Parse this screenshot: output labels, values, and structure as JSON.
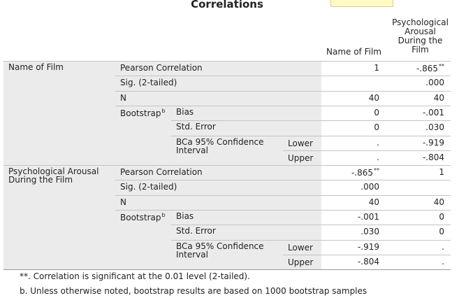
{
  "title": "Correlations",
  "columns": [
    "Name of Film",
    "Psychological Arousal During the Film"
  ],
  "blocks": [
    {
      "label": "Name of Film",
      "rows": [
        {
          "stat": "Pearson Correlation",
          "values": [
            {
              "text": "1"
            },
            {
              "text": "-.865",
              "sup": "**"
            }
          ]
        },
        {
          "stat": "Sig. (2-tailed)",
          "values": [
            null,
            {
              "text": ".000"
            }
          ]
        },
        {
          "stat": "N",
          "values": [
            {
              "text": "40"
            },
            {
              "text": "40"
            }
          ]
        },
        {
          "stat": "Bootstrap",
          "stat_sup": "b",
          "sub": "Bias",
          "values": [
            {
              "text": "0"
            },
            {
              "text": "-.001"
            }
          ]
        },
        {
          "sub": "Std. Error",
          "values": [
            {
              "text": "0"
            },
            {
              "text": ".030"
            }
          ]
        },
        {
          "sub": "BCa 95% Confidence Interval",
          "bound": "Lower",
          "values": [
            {
              "text": "."
            },
            {
              "text": "-.919"
            }
          ]
        },
        {
          "bound": "Upper",
          "values": [
            {
              "text": "."
            },
            {
              "text": "-.804"
            }
          ]
        }
      ]
    },
    {
      "label": "Psychological Arousal During the Film",
      "rows": [
        {
          "stat": "Pearson Correlation",
          "values": [
            {
              "text": "-.865",
              "sup": "**"
            },
            {
              "text": "1"
            }
          ]
        },
        {
          "stat": "Sig. (2-tailed)",
          "values": [
            {
              "text": ".000"
            },
            null
          ]
        },
        {
          "stat": "N",
          "values": [
            {
              "text": "40"
            },
            {
              "text": "40"
            }
          ]
        },
        {
          "stat": "Bootstrap",
          "stat_sup": "b",
          "sub": "Bias",
          "values": [
            {
              "text": "-.001"
            },
            {
              "text": "0"
            }
          ]
        },
        {
          "sub": "Std. Error",
          "values": [
            {
              "text": ".030"
            },
            {
              "text": "0"
            }
          ]
        },
        {
          "sub": "BCa 95% Confidence Interval",
          "bound": "Lower",
          "values": [
            {
              "text": "-.919"
            },
            {
              "text": "."
            }
          ]
        },
        {
          "bound": "Upper",
          "values": [
            {
              "text": "-.804"
            },
            {
              "text": "."
            }
          ]
        }
      ]
    }
  ],
  "footnotes": [
    "**. Correlation is significant at the 0.01 level (2-tailed).",
    "b. Unless otherwise noted, bootstrap results are based on 1000 bootstrap samples"
  ]
}
